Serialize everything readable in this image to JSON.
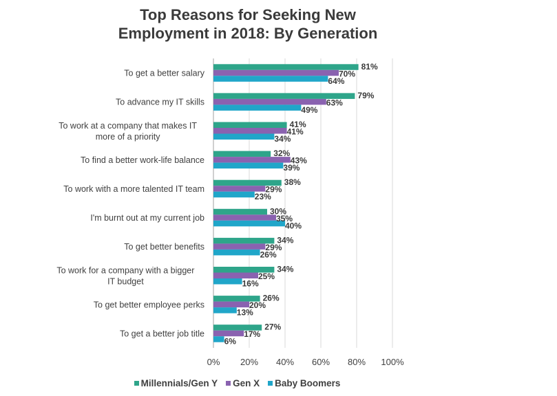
{
  "chart_data": {
    "type": "bar",
    "orientation": "horizontal",
    "title": "Top Reasons for Seeking New Employment in 2018: By Generation",
    "title_lines": [
      "Top Reasons for Seeking New",
      "Employment in 2018: By Generation"
    ],
    "categories": [
      [
        "To get a better salary"
      ],
      [
        "To advance my IT skills"
      ],
      [
        "To work at a company that makes IT",
        "more of a priority"
      ],
      [
        "To find a better work-life balance"
      ],
      [
        "To work with a more talented IT team"
      ],
      [
        "I'm burnt out at my current job"
      ],
      [
        "To get better benefits"
      ],
      [
        "To work for a company with a bigger",
        "IT budget"
      ],
      [
        "To get better employee perks"
      ],
      [
        "To get a better job title"
      ]
    ],
    "series": [
      {
        "name": "Millennials/Gen Y",
        "color": "#2ea58a",
        "values": [
          81,
          79,
          41,
          32,
          38,
          30,
          34,
          34,
          26,
          27
        ]
      },
      {
        "name": "Gen X",
        "color": "#8a62b0",
        "values": [
          70,
          63,
          41,
          43,
          29,
          35,
          29,
          25,
          20,
          17
        ]
      },
      {
        "name": "Baby Boomers",
        "color": "#20a6c9",
        "values": [
          64,
          49,
          34,
          39,
          23,
          40,
          26,
          16,
          13,
          6
        ]
      }
    ],
    "value_suffix": "%",
    "xlabel": "",
    "ylabel": "",
    "xlim": [
      0,
      100
    ],
    "xticks": [
      0,
      20,
      40,
      60,
      80,
      100
    ],
    "xtick_labels": [
      "0%",
      "20%",
      "40%",
      "60%",
      "80%",
      "100%"
    ],
    "grid": "vertical",
    "legend_position": "bottom"
  }
}
